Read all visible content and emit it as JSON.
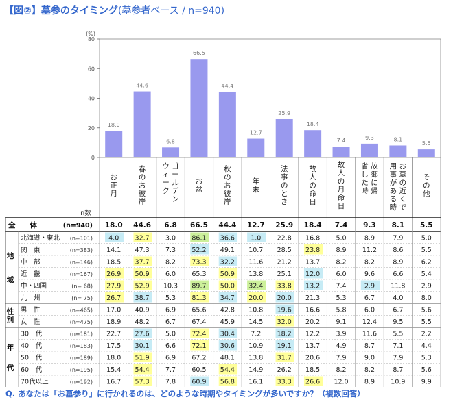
{
  "title": {
    "main": "【図②】墓参のタイミング",
    "sub": "(墓参者ベース / n=940)"
  },
  "question": "Q. あなたは「お墓参り」に行かれるのは、どのような時期やタイミングが多いですか？（複数回答）",
  "chart_data": {
    "type": "bar",
    "yunit": "(%)",
    "ylim": [
      0,
      80
    ],
    "yticks": [
      0,
      20,
      40,
      60,
      80
    ],
    "categories": [
      "お正月",
      "春のお彼岸",
      "ゴールデンウィーク",
      "お盆",
      "秋のお彼岸",
      "年末",
      "法事のとき",
      "故人の命日",
      "故人の月命日",
      "故郷に帰省した時",
      "お墓の近くで用事がある時",
      "その他"
    ],
    "category_lines": [
      [
        "お",
        "正",
        "月"
      ],
      [
        "春",
        "の",
        "お",
        "彼",
        "岸"
      ],
      [
        "ゴ",
        "ー",
        "ル",
        "デ",
        "ン"
      ],
      [
        "お",
        "盆"
      ],
      [
        "秋",
        "の",
        "お",
        "彼",
        "岸"
      ],
      [
        "年",
        "末"
      ],
      [
        "法",
        "事",
        "の",
        "と",
        "き"
      ],
      [
        "故",
        "人",
        "の",
        "命",
        "日"
      ],
      [
        "故",
        "人",
        "の",
        "月",
        "命",
        "日"
      ],
      [
        "故",
        "郷",
        "に",
        "帰",
        "省",
        "し",
        "た",
        "時"
      ],
      [
        "お",
        "墓",
        "の",
        "近",
        "く",
        "で",
        "用",
        "事",
        "が",
        "あ",
        "る",
        "時"
      ],
      [
        "そ",
        "の",
        "他"
      ]
    ],
    "category_lines2": [
      [],
      [],
      [
        "ウ",
        "ィ",
        "ー",
        "ク"
      ],
      [],
      [],
      [],
      [],
      [],
      [],
      [],
      [],
      []
    ],
    "values": [
      18.0,
      44.6,
      6.8,
      66.5,
      44.4,
      12.7,
      25.9,
      18.4,
      7.4,
      9.3,
      8.1,
      5.5
    ],
    "value_labels": [
      "18.0",
      "44.6",
      "6.8",
      "66.5",
      "44.4",
      "12.7",
      "25.9",
      "18.4",
      "7.4",
      "9.3",
      "8.1",
      "5.5"
    ],
    "bar_color": "#9999ee",
    "n_header": "n数",
    "total": {
      "group": "全　　体",
      "n": "(n=940)",
      "values": [
        "18.0",
        "44.6",
        "6.8",
        "66.5",
        "44.4",
        "12.7",
        "25.9",
        "18.4",
        "7.4",
        "9.3",
        "8.1",
        "5.5"
      ]
    },
    "groups": [
      {
        "label": "地域",
        "chars": [
          "地",
          "域"
        ],
        "rows": [
          {
            "label": "北海道・東北",
            "n": "(n=101)",
            "values": [
              "4.0",
              "32.7",
              "3.0",
              "86.1",
              "36.6",
              "1.0",
              "22.8",
              "16.8",
              "5.0",
              "8.9",
              "7.9",
              "5.0"
            ],
            "hl": [
              1,
              2,
              0,
              3,
              1,
              1,
              0,
              0,
              0,
              0,
              0,
              0
            ]
          },
          {
            "label": "関　東",
            "n": "(n=383)",
            "values": [
              "14.1",
              "47.3",
              "7.3",
              "52.2",
              "49.1",
              "10.7",
              "28.5",
              "23.8",
              "8.9",
              "11.2",
              "8.6",
              "5.5"
            ],
            "hl": [
              0,
              0,
              0,
              1,
              0,
              0,
              0,
              2,
              0,
              0,
              0,
              0
            ]
          },
          {
            "label": "中　部",
            "n": "(n=146)",
            "values": [
              "18.5",
              "37.7",
              "8.2",
              "73.3",
              "32.2",
              "11.6",
              "21.2",
              "13.7",
              "8.2",
              "8.2",
              "8.9",
              "6.2"
            ],
            "hl": [
              0,
              2,
              0,
              2,
              1,
              0,
              0,
              0,
              0,
              0,
              0,
              0
            ]
          },
          {
            "label": "近　畿",
            "n": "(n=167)",
            "values": [
              "26.9",
              "50.9",
              "6.0",
              "65.3",
              "50.9",
              "13.8",
              "25.1",
              "12.0",
              "6.0",
              "9.6",
              "6.6",
              "5.4"
            ],
            "hl": [
              2,
              2,
              0,
              0,
              2,
              0,
              0,
              1,
              0,
              0,
              0,
              0
            ]
          },
          {
            "label": "中・四国",
            "n": "(n= 68)",
            "values": [
              "27.9",
              "52.9",
              "10.3",
              "89.7",
              "50.0",
              "32.4",
              "33.8",
              "13.2",
              "7.4",
              "2.9",
              "11.8",
              "2.9"
            ],
            "hl": [
              2,
              2,
              0,
              3,
              2,
              3,
              2,
              1,
              0,
              1,
              0,
              0
            ]
          },
          {
            "label": "九　州",
            "n": "(n= 75)",
            "values": [
              "26.7",
              "38.7",
              "5.3",
              "81.3",
              "34.7",
              "20.0",
              "20.0",
              "21.3",
              "5.3",
              "6.7",
              "4.0",
              "8.0"
            ],
            "hl": [
              2,
              1,
              0,
              2,
              1,
              2,
              1,
              0,
              0,
              0,
              0,
              0
            ]
          }
        ]
      },
      {
        "label": "性別",
        "chars": [
          "性",
          "別"
        ],
        "rows": [
          {
            "label": "男　性",
            "n": "(n=465)",
            "values": [
              "17.0",
              "40.9",
              "6.9",
              "65.6",
              "42.8",
              "10.8",
              "19.6",
              "16.6",
              "5.8",
              "6.0",
              "6.7",
              "5.6"
            ],
            "hl": [
              0,
              0,
              0,
              0,
              0,
              0,
              1,
              0,
              0,
              0,
              0,
              0
            ]
          },
          {
            "label": "女　性",
            "n": "(n=475)",
            "values": [
              "18.9",
              "48.2",
              "6.7",
              "67.4",
              "45.9",
              "14.5",
              "32.0",
              "20.2",
              "9.1",
              "12.4",
              "9.5",
              "5.5"
            ],
            "hl": [
              0,
              0,
              0,
              0,
              0,
              0,
              2,
              0,
              0,
              0,
              0,
              0
            ]
          }
        ]
      },
      {
        "label": "年代",
        "chars": [
          "年",
          "代"
        ],
        "rows": [
          {
            "label": "30　代",
            "n": "(n=181)",
            "values": [
              "22.7",
              "27.6",
              "5.0",
              "72.4",
              "30.4",
              "7.2",
              "18.2",
              "12.2",
              "3.9",
              "11.6",
              "5.5",
              "2.2"
            ],
            "hl": [
              0,
              1,
              0,
              2,
              1,
              0,
              1,
              0,
              0,
              0,
              0,
              0
            ]
          },
          {
            "label": "40　代",
            "n": "(n=183)",
            "values": [
              "17.5",
              "30.1",
              "6.6",
              "72.1",
              "30.6",
              "10.9",
              "19.1",
              "13.7",
              "4.9",
              "8.7",
              "7.1",
              "4.4"
            ],
            "hl": [
              0,
              1,
              0,
              2,
              1,
              0,
              1,
              0,
              0,
              0,
              0,
              0
            ]
          },
          {
            "label": "50　代",
            "n": "(n=189)",
            "values": [
              "18.0",
              "51.9",
              "6.9",
              "67.2",
              "48.1",
              "13.8",
              "31.7",
              "20.6",
              "7.9",
              "9.0",
              "7.9",
              "5.3"
            ],
            "hl": [
              0,
              2,
              0,
              0,
              0,
              0,
              2,
              0,
              0,
              0,
              0,
              0
            ]
          },
          {
            "label": "60　代",
            "n": "(n=195)",
            "values": [
              "15.4",
              "54.4",
              "7.7",
              "60.5",
              "54.4",
              "14.9",
              "26.2",
              "18.5",
              "8.2",
              "8.2",
              "8.7",
              "5.6"
            ],
            "hl": [
              0,
              2,
              0,
              0,
              2,
              0,
              0,
              0,
              0,
              0,
              0,
              0
            ]
          },
          {
            "label": "70代以上",
            "n": "(n=192)",
            "values": [
              "16.7",
              "57.3",
              "7.8",
              "60.9",
              "56.8",
              "16.1",
              "33.3",
              "26.6",
              "12.0",
              "8.9",
              "10.9",
              "9.9"
            ],
            "hl": [
              0,
              2,
              0,
              1,
              2,
              0,
              2,
              2,
              0,
              0,
              0,
              0
            ]
          }
        ]
      }
    ],
    "highlight_colors": {
      "low": "#c6ebf5",
      "high": "#ffff99",
      "high_strong": "#ccf09a",
      "low_strong": "#9ff5f0"
    }
  }
}
